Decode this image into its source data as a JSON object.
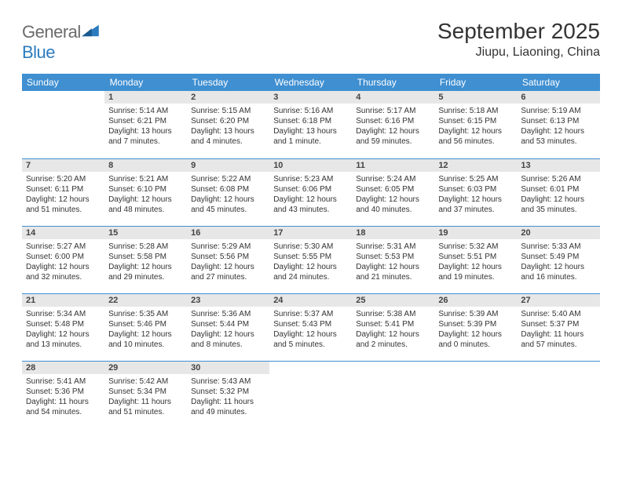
{
  "brand": {
    "word1": "General",
    "word2": "Blue"
  },
  "title": "September 2025",
  "location": "Jiupu, Liaoning, China",
  "header_bg": "#3f8fd1",
  "daynum_bg": "#e7e7e7",
  "rule_color": "#3f8fd1",
  "weekdays": [
    "Sunday",
    "Monday",
    "Tuesday",
    "Wednesday",
    "Thursday",
    "Friday",
    "Saturday"
  ],
  "first_weekday_index": 1,
  "days": [
    {
      "n": 1,
      "sunrise": "5:14 AM",
      "sunset": "6:21 PM",
      "daylight": "13 hours and 7 minutes."
    },
    {
      "n": 2,
      "sunrise": "5:15 AM",
      "sunset": "6:20 PM",
      "daylight": "13 hours and 4 minutes."
    },
    {
      "n": 3,
      "sunrise": "5:16 AM",
      "sunset": "6:18 PM",
      "daylight": "13 hours and 1 minute."
    },
    {
      "n": 4,
      "sunrise": "5:17 AM",
      "sunset": "6:16 PM",
      "daylight": "12 hours and 59 minutes."
    },
    {
      "n": 5,
      "sunrise": "5:18 AM",
      "sunset": "6:15 PM",
      "daylight": "12 hours and 56 minutes."
    },
    {
      "n": 6,
      "sunrise": "5:19 AM",
      "sunset": "6:13 PM",
      "daylight": "12 hours and 53 minutes."
    },
    {
      "n": 7,
      "sunrise": "5:20 AM",
      "sunset": "6:11 PM",
      "daylight": "12 hours and 51 minutes."
    },
    {
      "n": 8,
      "sunrise": "5:21 AM",
      "sunset": "6:10 PM",
      "daylight": "12 hours and 48 minutes."
    },
    {
      "n": 9,
      "sunrise": "5:22 AM",
      "sunset": "6:08 PM",
      "daylight": "12 hours and 45 minutes."
    },
    {
      "n": 10,
      "sunrise": "5:23 AM",
      "sunset": "6:06 PM",
      "daylight": "12 hours and 43 minutes."
    },
    {
      "n": 11,
      "sunrise": "5:24 AM",
      "sunset": "6:05 PM",
      "daylight": "12 hours and 40 minutes."
    },
    {
      "n": 12,
      "sunrise": "5:25 AM",
      "sunset": "6:03 PM",
      "daylight": "12 hours and 37 minutes."
    },
    {
      "n": 13,
      "sunrise": "5:26 AM",
      "sunset": "6:01 PM",
      "daylight": "12 hours and 35 minutes."
    },
    {
      "n": 14,
      "sunrise": "5:27 AM",
      "sunset": "6:00 PM",
      "daylight": "12 hours and 32 minutes."
    },
    {
      "n": 15,
      "sunrise": "5:28 AM",
      "sunset": "5:58 PM",
      "daylight": "12 hours and 29 minutes."
    },
    {
      "n": 16,
      "sunrise": "5:29 AM",
      "sunset": "5:56 PM",
      "daylight": "12 hours and 27 minutes."
    },
    {
      "n": 17,
      "sunrise": "5:30 AM",
      "sunset": "5:55 PM",
      "daylight": "12 hours and 24 minutes."
    },
    {
      "n": 18,
      "sunrise": "5:31 AM",
      "sunset": "5:53 PM",
      "daylight": "12 hours and 21 minutes."
    },
    {
      "n": 19,
      "sunrise": "5:32 AM",
      "sunset": "5:51 PM",
      "daylight": "12 hours and 19 minutes."
    },
    {
      "n": 20,
      "sunrise": "5:33 AM",
      "sunset": "5:49 PM",
      "daylight": "12 hours and 16 minutes."
    },
    {
      "n": 21,
      "sunrise": "5:34 AM",
      "sunset": "5:48 PM",
      "daylight": "12 hours and 13 minutes."
    },
    {
      "n": 22,
      "sunrise": "5:35 AM",
      "sunset": "5:46 PM",
      "daylight": "12 hours and 10 minutes."
    },
    {
      "n": 23,
      "sunrise": "5:36 AM",
      "sunset": "5:44 PM",
      "daylight": "12 hours and 8 minutes."
    },
    {
      "n": 24,
      "sunrise": "5:37 AM",
      "sunset": "5:43 PM",
      "daylight": "12 hours and 5 minutes."
    },
    {
      "n": 25,
      "sunrise": "5:38 AM",
      "sunset": "5:41 PM",
      "daylight": "12 hours and 2 minutes."
    },
    {
      "n": 26,
      "sunrise": "5:39 AM",
      "sunset": "5:39 PM",
      "daylight": "12 hours and 0 minutes."
    },
    {
      "n": 27,
      "sunrise": "5:40 AM",
      "sunset": "5:37 PM",
      "daylight": "11 hours and 57 minutes."
    },
    {
      "n": 28,
      "sunrise": "5:41 AM",
      "sunset": "5:36 PM",
      "daylight": "11 hours and 54 minutes."
    },
    {
      "n": 29,
      "sunrise": "5:42 AM",
      "sunset": "5:34 PM",
      "daylight": "11 hours and 51 minutes."
    },
    {
      "n": 30,
      "sunrise": "5:43 AM",
      "sunset": "5:32 PM",
      "daylight": "11 hours and 49 minutes."
    }
  ],
  "labels": {
    "sunrise": "Sunrise:",
    "sunset": "Sunset:",
    "daylight": "Daylight:"
  }
}
